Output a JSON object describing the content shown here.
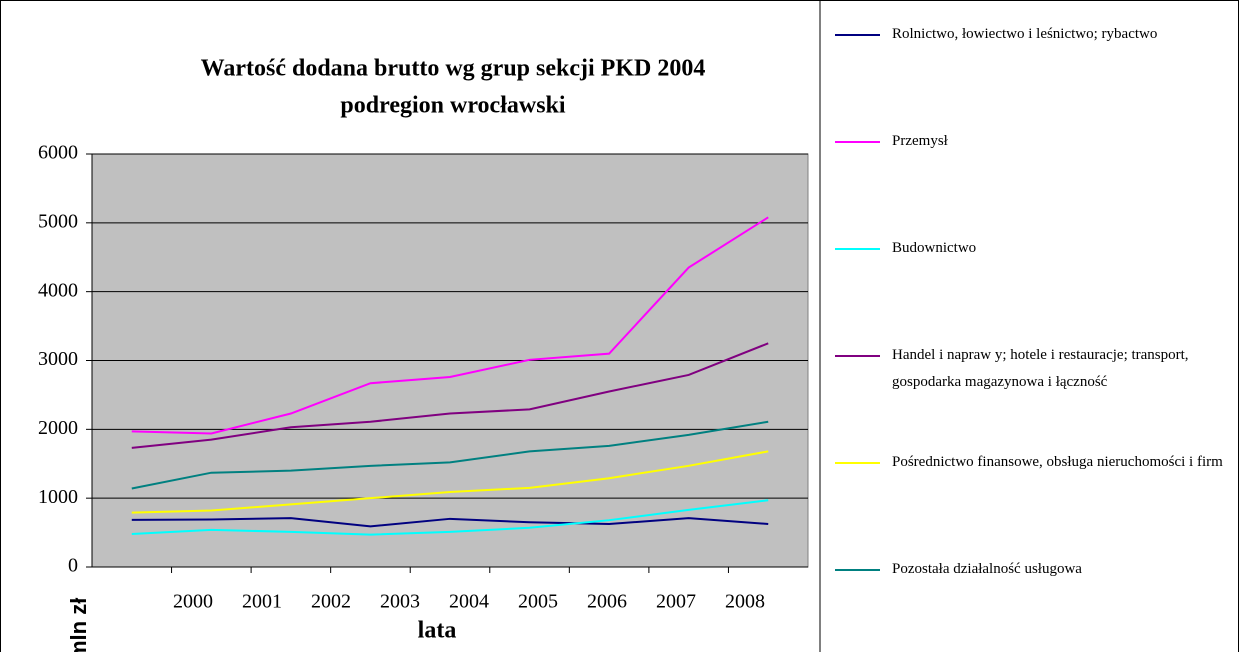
{
  "chart_data": {
    "type": "line",
    "title": [
      "Wartość dodana brutto wg grup sekcji PKD 2004",
      "podregion wrocławski"
    ],
    "x_label": "lata",
    "y_label": "mln zł",
    "categories": [
      "2000",
      "2001",
      "2002",
      "2003",
      "2004",
      "2005",
      "2006",
      "2007",
      "2008"
    ],
    "ylim": [
      0,
      6000
    ],
    "yticks": [
      0,
      1000,
      2000,
      3000,
      4000,
      5000,
      6000
    ],
    "grid": true,
    "legend": "right",
    "series": [
      {
        "name": "Rolnictwo, łowiectwo i leśnictwo; rybactwo",
        "color": "#000080",
        "values": [
          685,
          690,
          710,
          590,
          700,
          650,
          625,
          710,
          625
        ]
      },
      {
        "name": "Przemysł",
        "color": "#ff00ff",
        "values": [
          1970,
          1940,
          2230,
          2670,
          2760,
          3010,
          3100,
          4350,
          5080
        ]
      },
      {
        "name": "Budownictwo",
        "color": "#00ffff",
        "values": [
          480,
          540,
          510,
          470,
          510,
          570,
          680,
          830,
          970
        ]
      },
      {
        "name": "Handel i napraw y; hotele i restauracje; transport, gospodarka magazynowa i łączność",
        "color": "#800080",
        "values": [
          1730,
          1850,
          2030,
          2110,
          2230,
          2290,
          2550,
          2790,
          3250
        ]
      },
      {
        "name": "Pośrednictwo finansowe, obsługa nieruchomości i firm",
        "color": "#ffff00",
        "values": [
          790,
          820,
          910,
          1000,
          1090,
          1150,
          1290,
          1470,
          1680
        ]
      },
      {
        "name": "Pozostała działalność usługowa",
        "color": "#008080",
        "values": [
          1140,
          1370,
          1400,
          1470,
          1520,
          1680,
          1760,
          1920,
          2110
        ]
      }
    ]
  }
}
